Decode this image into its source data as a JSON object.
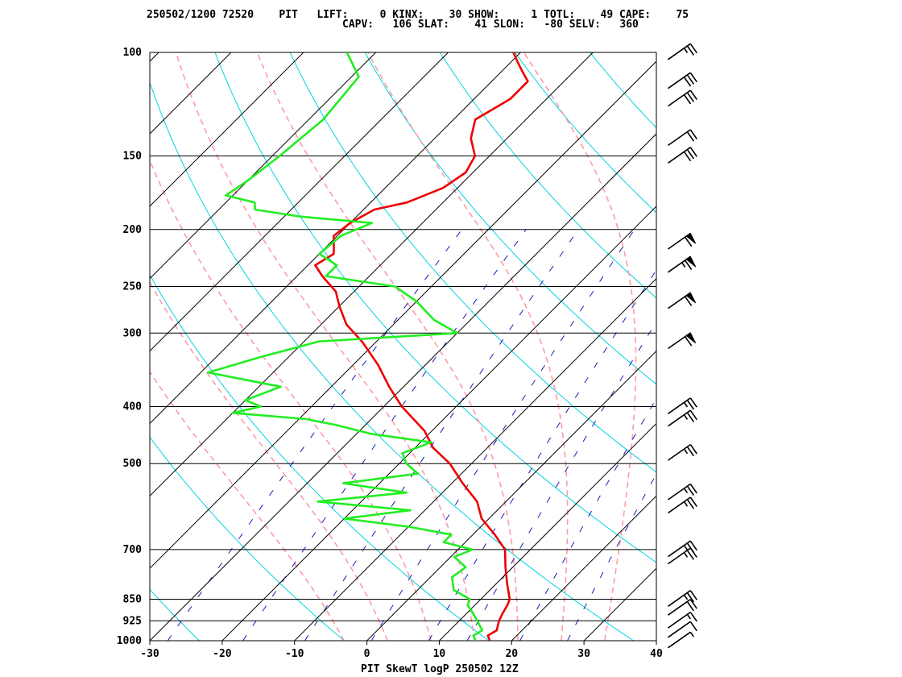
{
  "header": {
    "line1": "250502/1200 72520    PIT   LIFT:     0 KINX:    30 SHOW:     1 TOTL:    49 CAPE:    75",
    "line2": "CAPV:   106 SLAT:    41 SLON:   -80 SELV:   360"
  },
  "chart_data": {
    "type": "line",
    "title": "PIT SkewT logP 250502 12Z",
    "xlabel": "",
    "ylabel": "",
    "x_scale": "skew-T (temperature, degC)",
    "y_scale": "log pressure (hPa), inverted",
    "xlim": [
      -30,
      40
    ],
    "ylim": [
      1000,
      100
    ],
    "x_ticks": [
      -30,
      -20,
      -10,
      0,
      10,
      20,
      30,
      40
    ],
    "x_tick_labels": [
      "-30",
      "-20",
      "-10",
      "0",
      "10",
      "20",
      "30",
      "40"
    ],
    "y_ticks": [
      100,
      150,
      200,
      250,
      300,
      400,
      500,
      700,
      850,
      925,
      1000
    ],
    "y_tick_labels": [
      "100",
      "150",
      "200",
      "250",
      "300",
      "400",
      "500",
      "700",
      "850",
      "925",
      "1000"
    ],
    "isotherm_step": 10,
    "dry_adiabats_K": [
      250,
      270,
      290,
      310,
      330,
      350,
      370,
      390,
      410,
      430
    ],
    "moist_adiabats_K": [
      270,
      276,
      282,
      288,
      294,
      300,
      306
    ],
    "mixing_ratios_gkg": [
      0.4,
      1,
      2,
      4,
      7,
      10,
      16,
      24
    ],
    "series": [
      {
        "color": "#ee0000",
        "p": [
          1000,
          980,
          960,
          925,
          900,
          870,
          850,
          800,
          750,
          700,
          660,
          620,
          580,
          540,
          500,
          470,
          440,
          400,
          370,
          340,
          310,
          290,
          270,
          255,
          240,
          230,
          220,
          205,
          195,
          185,
          180,
          170,
          160,
          150,
          140,
          130,
          120,
          112,
          108,
          104,
          100
        ],
        "t": [
          17.0,
          16.0,
          16.5,
          15.5,
          15.0,
          14.5,
          14.0,
          11.5,
          9.0,
          6.5,
          3.0,
          -1.0,
          -4.0,
          -8.5,
          -13.0,
          -17.5,
          -21.0,
          -27.5,
          -32.0,
          -36.5,
          -42.0,
          -46.5,
          -50.0,
          -52.5,
          -56.5,
          -59.0,
          -58.0,
          -60.5,
          -60.0,
          -58.5,
          -55.0,
          -52.0,
          -51.0,
          -52.0,
          -55.0,
          -57.0,
          -55.0,
          -55.0,
          -57.0,
          -59.0,
          -61.0
        ]
      },
      {
        "color": "#22ee22",
        "p": [
          1000,
          980,
          960,
          925,
          900,
          870,
          850,
          820,
          780,
          750,
          720,
          700,
          680,
          660,
          640,
          620,
          600,
          580,
          560,
          540,
          520,
          500,
          480,
          460,
          445,
          430,
          420,
          410,
          400,
          390,
          370,
          350,
          330,
          310,
          300,
          285,
          265,
          250,
          240,
          230,
          220,
          205,
          195,
          190,
          185,
          180,
          175,
          165,
          150,
          130,
          110,
          100
        ],
        "t": [
          15.0,
          14.0,
          14.5,
          12.5,
          11.0,
          9.0,
          8.5,
          5.0,
          3.0,
          3.5,
          0.5,
          2.0,
          -3.0,
          -3.0,
          -10.0,
          -20.0,
          -12.0,
          -26.0,
          -15.0,
          -25.0,
          -16.0,
          -19.0,
          -21.0,
          -18.5,
          -28.0,
          -34.0,
          -39.0,
          -50.0,
          -47.0,
          -50.0,
          -47.0,
          -59.0,
          -54.0,
          -48.0,
          -30.0,
          -35.0,
          -40.0,
          -45.0,
          -56.0,
          -56.0,
          -60.0,
          -59.5,
          -57.0,
          -68.0,
          -75.0,
          -76.0,
          -81.0,
          -80.0,
          -79.0,
          -78.0,
          -79.0,
          -84.0
        ]
      }
    ],
    "wind_barbs": [
      {
        "p": 1000,
        "barbs": [
          "half"
        ]
      },
      {
        "p": 960,
        "barbs": [
          "full"
        ]
      },
      {
        "p": 925,
        "barbs": [
          "full",
          "half"
        ]
      },
      {
        "p": 880,
        "barbs": [
          "full",
          "full"
        ]
      },
      {
        "p": 850,
        "barbs": [
          "full",
          "full",
          "half"
        ]
      },
      {
        "p": 720,
        "barbs": [
          "full",
          "full",
          "half"
        ]
      },
      {
        "p": 700,
        "barbs": [
          "full",
          "full",
          "half"
        ]
      },
      {
        "p": 590,
        "barbs": [
          "full",
          "full",
          "half"
        ]
      },
      {
        "p": 560,
        "barbs": [
          "full",
          "full",
          "half"
        ]
      },
      {
        "p": 480,
        "barbs": [
          "full",
          "full",
          "half"
        ]
      },
      {
        "p": 420,
        "barbs": [
          "full",
          "full",
          "half"
        ]
      },
      {
        "p": 400,
        "barbs": [
          "full",
          "full",
          "half"
        ]
      },
      {
        "p": 310,
        "barbs": [
          "pennant",
          "full"
        ]
      },
      {
        "p": 265,
        "barbs": [
          "pennant",
          "full"
        ]
      },
      {
        "p": 230,
        "barbs": [
          "pennant",
          "full",
          "half"
        ]
      },
      {
        "p": 210,
        "barbs": [
          "pennant",
          "full"
        ]
      },
      {
        "p": 150,
        "barbs": [
          "full",
          "full",
          "full"
        ]
      },
      {
        "p": 140,
        "barbs": [
          "full",
          "full"
        ]
      },
      {
        "p": 120,
        "barbs": [
          "full",
          "full",
          "full"
        ]
      },
      {
        "p": 112,
        "barbs": [
          "full",
          "full",
          "full"
        ]
      },
      {
        "p": 100,
        "barbs": [
          "full",
          "full",
          "half"
        ]
      }
    ],
    "colors": {
      "temperature": "#ee0000",
      "dewpoint": "#22ee22",
      "isotherm": "#000000",
      "isobar": "#000000",
      "dry_adiabat": "#00d4e0",
      "moist_adiabat": "#ff9aa8",
      "mixing_ratio": "#1a1ab8"
    }
  }
}
